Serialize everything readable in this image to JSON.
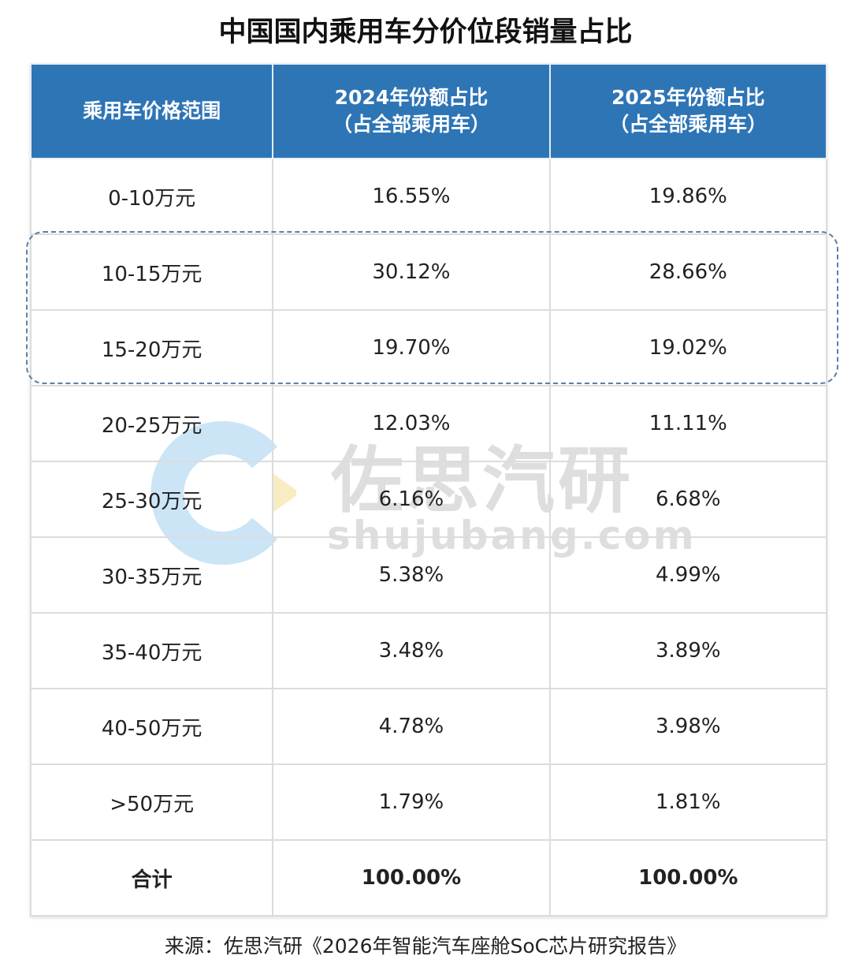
{
  "title": "中国国内乘用车分价位段销量占比",
  "watermark": {
    "cn": "佐思汽研",
    "en": "shujubang.com",
    "logo_colors": [
      "#a8d4f0",
      "#f5e6a8"
    ]
  },
  "colors": {
    "header_bg": "#2e75b6",
    "highlight_border": "#5a7fa6"
  },
  "chart_data": {
    "type": "table",
    "title": "中国国内乘用车分价位段销量占比",
    "columns": [
      "乘用车价格范围",
      "2024年份额占比\n（占全部乘用车）",
      "2025年份额占比\n（占全部乘用车）"
    ],
    "header_lines": [
      [
        "乘用车价格范围"
      ],
      [
        "2024年份额占比",
        "（占全部乘用车）"
      ],
      [
        "2025年份额占比",
        "（占全部乘用车）"
      ]
    ],
    "rows": [
      [
        "0-10万元",
        "16.55%",
        "19.86%"
      ],
      [
        "10-15万元",
        "30.12%",
        "28.66%"
      ],
      [
        "15-20万元",
        "19.70%",
        "19.02%"
      ],
      [
        "20-25万元",
        "12.03%",
        "11.11%"
      ],
      [
        "25-30万元",
        "6.16%",
        "6.68%"
      ],
      [
        "30-35万元",
        "5.38%",
        "4.99%"
      ],
      [
        "35-40万元",
        "3.48%",
        "3.89%"
      ],
      [
        "40-50万元",
        "4.78%",
        "3.98%"
      ],
      [
        ">50万元",
        "1.79%",
        "1.81%"
      ],
      [
        "合计",
        "100.00%",
        "100.00%"
      ]
    ],
    "highlighted_rows": [
      "10-15万元",
      "15-20万元"
    ]
  },
  "source": "来源：佐思汽研《2026年智能汽车座舱SoC芯片研究报告》"
}
